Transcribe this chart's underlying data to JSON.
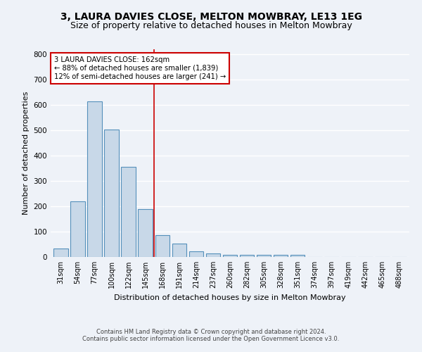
{
  "title": "3, LAURA DAVIES CLOSE, MELTON MOWBRAY, LE13 1EG",
  "subtitle": "Size of property relative to detached houses in Melton Mowbray",
  "xlabel": "Distribution of detached houses by size in Melton Mowbray",
  "ylabel": "Number of detached properties",
  "categories": [
    "31sqm",
    "54sqm",
    "77sqm",
    "100sqm",
    "122sqm",
    "145sqm",
    "168sqm",
    "191sqm",
    "214sqm",
    "237sqm",
    "260sqm",
    "282sqm",
    "305sqm",
    "328sqm",
    "351sqm",
    "374sqm",
    "397sqm",
    "419sqm",
    "442sqm",
    "465sqm",
    "488sqm"
  ],
  "values": [
    32,
    220,
    615,
    503,
    357,
    190,
    85,
    52,
    22,
    14,
    9,
    8,
    9,
    8,
    9,
    0,
    0,
    0,
    0,
    0,
    0
  ],
  "bar_color": "#c8d8e8",
  "bar_edge_color": "#5590bb",
  "red_line_x": 5.5,
  "annotation_text": "3 LAURA DAVIES CLOSE: 162sqm\n← 88% of detached houses are smaller (1,839)\n12% of semi-detached houses are larger (241) →",
  "annotation_box_color": "#ffffff",
  "annotation_box_edge_color": "#cc0000",
  "ylim": [
    0,
    820
  ],
  "yticks": [
    0,
    100,
    200,
    300,
    400,
    500,
    600,
    700,
    800
  ],
  "footer_line1": "Contains HM Land Registry data © Crown copyright and database right 2024.",
  "footer_line2": "Contains public sector information licensed under the Open Government Licence v3.0.",
  "bg_color": "#eef2f8",
  "plot_bg_color": "#eef2f8",
  "grid_color": "#ffffff",
  "title_fontsize": 10,
  "subtitle_fontsize": 9,
  "bar_width": 0.85
}
